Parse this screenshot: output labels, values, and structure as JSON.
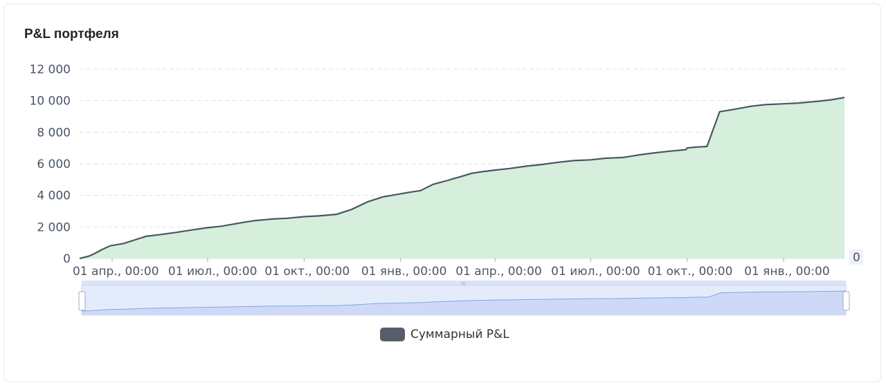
{
  "card": {
    "title": "P&L портфеля"
  },
  "colors": {
    "line": "#4a5563",
    "area": "#d6eedc",
    "grid": "#dcdfe4",
    "zoom_fill": "#e4ecfb",
    "zoom_line": "#7fa6e6"
  },
  "chart_data": {
    "type": "area",
    "title": "P&L портфеля",
    "xlabel": "",
    "ylabel": "",
    "ylim": [
      0,
      12000
    ],
    "yticks": [
      0,
      2000,
      4000,
      6000,
      8000,
      10000,
      12000
    ],
    "ytick_labels": [
      "0",
      "2 000",
      "4 000",
      "6 000",
      "8 000",
      "10 000",
      "12 000"
    ],
    "xlim": [
      "2022-03-01",
      "2024-02-28"
    ],
    "xticks": [
      "2022-04-01",
      "2022-07-01",
      "2022-10-01",
      "2023-01-01",
      "2023-04-01",
      "2023-07-01",
      "2023-10-01",
      "2024-01-01"
    ],
    "xtick_labels": [
      "01 апр., 00:00",
      "01 июл., 00:00",
      "01 окт., 00:00",
      "01 янв., 00:00",
      "01 апр., 00:00",
      "01 июл., 00:00",
      "01 окт., 00:00",
      "01 янв., 00:00"
    ],
    "right_axis_label": "0",
    "legend": {
      "position": "bottom-center",
      "entries": [
        "Суммарный P&L"
      ]
    },
    "grid": true,
    "series": [
      {
        "name": "Суммарный P&L",
        "x": [
          "2022-03-01",
          "2022-03-10",
          "2022-03-15",
          "2022-03-22",
          "2022-03-30",
          "2022-04-12",
          "2022-04-26",
          "2022-05-01",
          "2022-05-03",
          "2022-05-15",
          "2022-06-01",
          "2022-06-15",
          "2022-07-01",
          "2022-07-15",
          "2022-08-01",
          "2022-08-15",
          "2022-09-01",
          "2022-09-15",
          "2022-10-01",
          "2022-10-15",
          "2022-11-01",
          "2022-11-15",
          "2022-12-01",
          "2022-12-15",
          "2023-01-01",
          "2023-01-10",
          "2023-01-20",
          "2023-02-01",
          "2023-02-15",
          "2023-02-20",
          "2023-02-28",
          "2023-03-10",
          "2023-03-20",
          "2023-04-01",
          "2023-04-15",
          "2023-05-01",
          "2023-05-15",
          "2023-06-01",
          "2023-06-15",
          "2023-07-01",
          "2023-07-15",
          "2023-08-01",
          "2023-08-15",
          "2023-09-01",
          "2023-09-15",
          "2023-09-30",
          "2023-10-01",
          "2023-10-08",
          "2023-10-20",
          "2023-11-01",
          "2023-11-15",
          "2023-12-01",
          "2023-12-15",
          "2024-01-01",
          "2024-01-15",
          "2024-02-01",
          "2024-02-15",
          "2024-02-28"
        ],
        "values": [
          0,
          150,
          300,
          550,
          800,
          950,
          1250,
          1350,
          1400,
          1500,
          1650,
          1800,
          1950,
          2050,
          2250,
          2400,
          2500,
          2550,
          2650,
          2700,
          2800,
          3100,
          3600,
          3900,
          4100,
          4200,
          4300,
          4700,
          4950,
          5050,
          5200,
          5400,
          5500,
          5600,
          5700,
          5850,
          5950,
          6100,
          6200,
          6250,
          6350,
          6400,
          6550,
          6700,
          6800,
          6900,
          7000,
          7050,
          7100,
          9300,
          9450,
          9650,
          9750,
          9800,
          9850,
          9950,
          10050,
          10200
        ]
      }
    ]
  }
}
